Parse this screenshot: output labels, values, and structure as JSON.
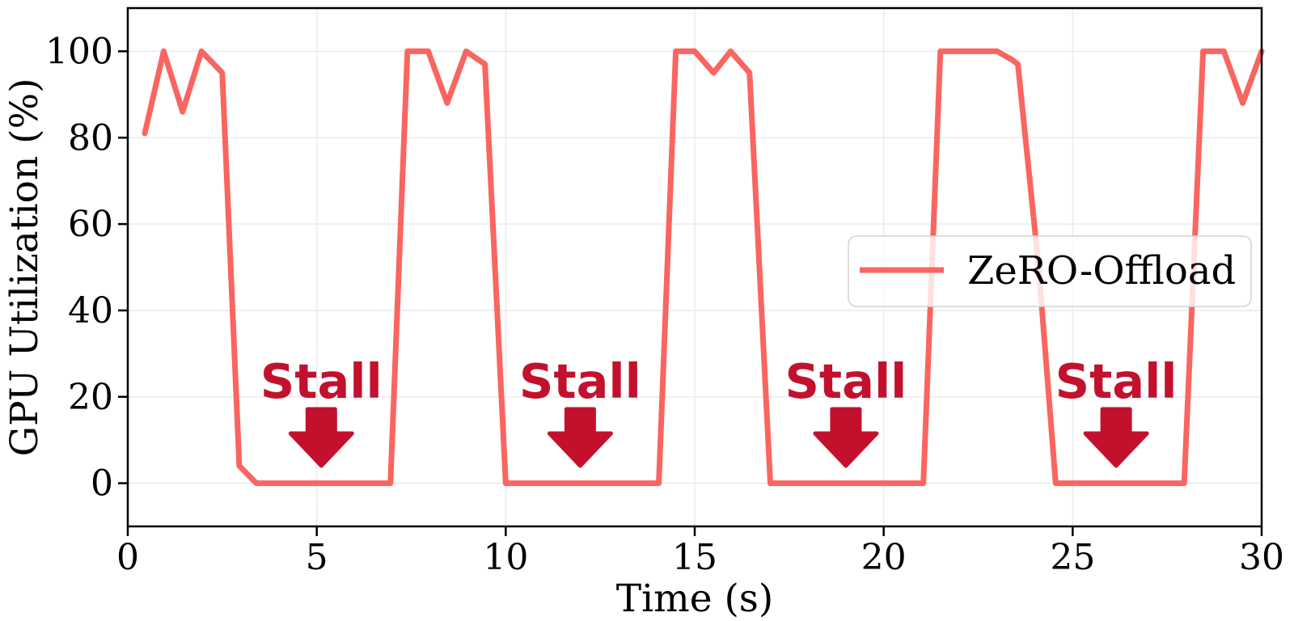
{
  "style": {
    "background": "#ffffff",
    "line_color": "#f96560",
    "annotation_color": "#c3112d",
    "grid_color": "#ececec",
    "axis_color": "#000000",
    "legend_border_color": "#d2d2d2",
    "legend_fill": "rgba(255,255,255,0.8)"
  },
  "chart_data": {
    "type": "line",
    "title": "",
    "xlabel": "Time (s)",
    "ylabel": "GPU Utilization (%)",
    "xlim": [
      0,
      30
    ],
    "ylim": [
      -10,
      110
    ],
    "x_ticks": [
      0,
      5,
      10,
      15,
      20,
      25,
      30
    ],
    "y_ticks": [
      0,
      20,
      40,
      60,
      80,
      100
    ],
    "grid": true,
    "legend_position": "center right",
    "series": [
      {
        "name": "ZeRO-Offload",
        "color": "#f96560",
        "points": [
          [
            0.45,
            81
          ],
          [
            0.95,
            100
          ],
          [
            1.45,
            86
          ],
          [
            1.95,
            100
          ],
          [
            2.5,
            95
          ],
          [
            2.95,
            4
          ],
          [
            3.4,
            0
          ],
          [
            6.95,
            0
          ],
          [
            7.4,
            100
          ],
          [
            7.95,
            100
          ],
          [
            8.45,
            88
          ],
          [
            8.95,
            100
          ],
          [
            9.45,
            97
          ],
          [
            10.0,
            0
          ],
          [
            14.05,
            0
          ],
          [
            14.5,
            100
          ],
          [
            15.0,
            100
          ],
          [
            15.5,
            95
          ],
          [
            15.95,
            100
          ],
          [
            16.45,
            95
          ],
          [
            17.0,
            0
          ],
          [
            21.05,
            0
          ],
          [
            21.5,
            100
          ],
          [
            23.0,
            100
          ],
          [
            23.4,
            98
          ],
          [
            23.55,
            97
          ],
          [
            24.1,
            50
          ],
          [
            24.55,
            0
          ],
          [
            27.95,
            0
          ],
          [
            28.45,
            100
          ],
          [
            29.0,
            100
          ],
          [
            29.5,
            88
          ],
          [
            30.0,
            100
          ]
        ]
      }
    ],
    "annotations": [
      {
        "text": "Stall",
        "x": 5.12,
        "y": 20,
        "arrow": "down"
      },
      {
        "text": "Stall",
        "x": 11.97,
        "y": 20,
        "arrow": "down"
      },
      {
        "text": "Stall",
        "x": 19.0,
        "y": 20,
        "arrow": "down"
      },
      {
        "text": "Stall",
        "x": 26.15,
        "y": 20,
        "arrow": "down"
      }
    ],
    "legend": {
      "label": "ZeRO-Offload"
    }
  }
}
